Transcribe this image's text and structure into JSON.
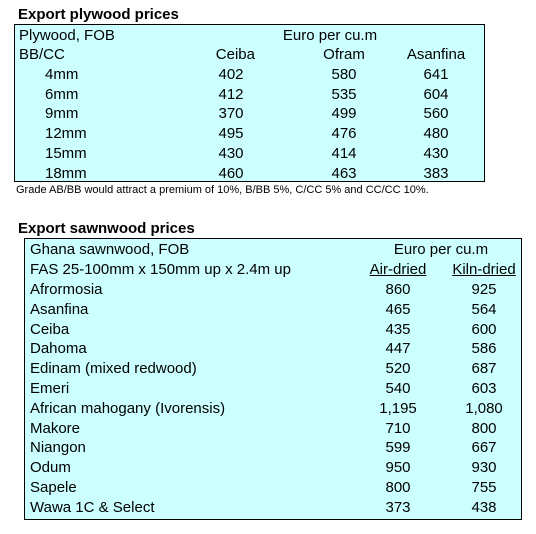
{
  "plywood": {
    "title": "Export plywood prices",
    "header_left": "Plywood, FOB",
    "unit": "Euro per cu.m",
    "columns": [
      "BB/CC",
      "Ceiba",
      "Ofram",
      "Asanfina"
    ],
    "rows": [
      [
        "4mm",
        "402",
        "580",
        "641"
      ],
      [
        "6mm",
        "412",
        "535",
        "604"
      ],
      [
        "9mm",
        "370",
        "499",
        "560"
      ],
      [
        "12mm",
        "495",
        "476",
        "480"
      ],
      [
        "15mm",
        "430",
        "414",
        "430"
      ],
      [
        "18mm",
        "460",
        "463",
        "383"
      ]
    ],
    "note": "Grade AB/BB would attract a premium of 10%, B/BB 5%, C/CC 5% and CC/CC 10%."
  },
  "sawnwood": {
    "title": "Export sawnwood prices",
    "header_left": "Ghana sawnwood, FOB",
    "unit": "Euro per cu.m",
    "columns": [
      "FAS 25-100mm x 150mm up x 2.4m up",
      "Air-dried",
      "Kiln-dried"
    ],
    "rows": [
      [
        "Afrormosia",
        "860",
        "925"
      ],
      [
        "Asanfina",
        "465",
        "564"
      ],
      [
        "Ceiba",
        "435",
        "600"
      ],
      [
        "Dahoma",
        "447",
        "586"
      ],
      [
        "Edinam (mixed redwood)",
        "520",
        "687"
      ],
      [
        "Emeri",
        "540",
        "603"
      ],
      [
        "African mahogany (Ivorensis)",
        "1,195",
        "1,080"
      ],
      [
        "Makore",
        "710",
        "800"
      ],
      [
        "Niangon",
        "599",
        "667"
      ],
      [
        "Odum",
        "950",
        "930"
      ],
      [
        "Sapele",
        "800",
        "755"
      ],
      [
        "Wawa 1C & Select",
        "373",
        "438"
      ]
    ]
  }
}
